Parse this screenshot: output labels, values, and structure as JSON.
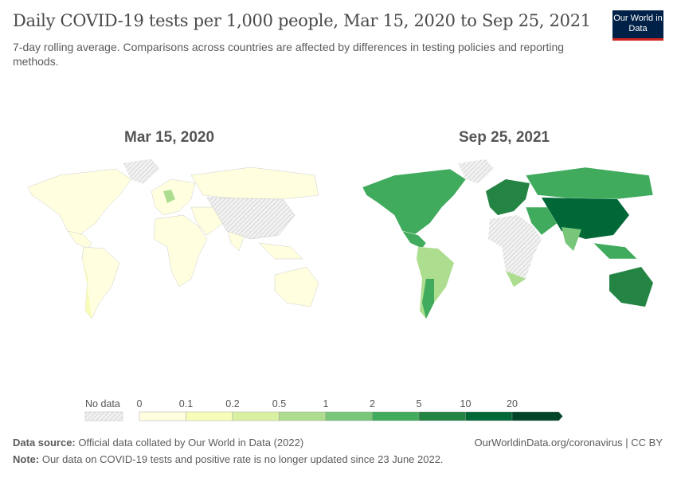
{
  "title": "Daily COVID-19 tests per 1,000 people, Mar 15, 2020 to Sep 25, 2021",
  "subtitle": "7-day rolling average. Comparisons across countries are affected by differences in testing policies and reporting methods.",
  "logo": "Our World in Data",
  "maps": [
    {
      "date": "Mar 15, 2020"
    },
    {
      "date": "Sep 25, 2021"
    }
  ],
  "legend": {
    "no_data": "No data",
    "ticks": [
      "0",
      "0.1",
      "0.2",
      "0.5",
      "1",
      "2",
      "5",
      "10",
      "20"
    ],
    "colors": [
      "#ffffe0",
      "#f7fcb9",
      "#d9f0a3",
      "#addd8e",
      "#78c679",
      "#41ab5d",
      "#238443",
      "#006837",
      "#004529"
    ]
  },
  "footer": {
    "source_label": "Data source:",
    "source": "Official data collated by Our World in Data (2022)",
    "note_label": "Note:",
    "note": "Our data on COVID-19 tests and positive rate is no longer updated since 23 June 2022.",
    "link": "OurWorldinData.org/coronavirus | CC BY"
  }
}
